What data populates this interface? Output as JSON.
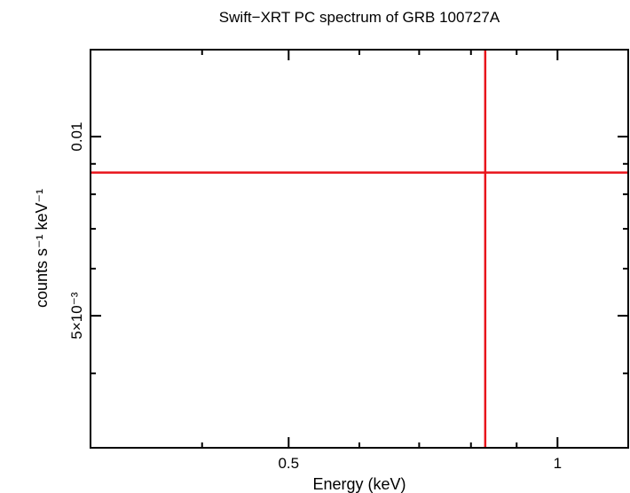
{
  "chart_data": {
    "type": "scatter",
    "title": "Swift−XRT PC spectrum of GRB 100727A",
    "xlabel": "Energy (keV)",
    "ylabel": "counts s⁻¹ keV⁻¹",
    "x_scale": "log",
    "y_scale": "log",
    "xlim": [
      0.3,
      1.2
    ],
    "ylim": [
      0.003,
      0.014
    ],
    "x_tick_labels": [
      {
        "value": 0.5,
        "label": "0.5"
      },
      {
        "value": 1,
        "label": "1"
      }
    ],
    "y_tick_labels": [
      {
        "value": 0.005,
        "label": "5×10⁻³"
      },
      {
        "value": 0.01,
        "label": "0.01"
      }
    ],
    "x_minor_ticks": [
      0.4,
      0.6,
      0.7,
      0.8,
      0.9
    ],
    "y_minor_ticks": [
      0.004,
      0.006,
      0.007,
      0.008,
      0.009
    ],
    "grid": false,
    "series": [
      {
        "color": "#e8141b",
        "points": [
          {
            "x": 0.83,
            "y": 0.0087,
            "xerr": [
              0.3,
              1.2
            ],
            "yerr": [
              0.003,
              0.014
            ]
          }
        ]
      }
    ]
  }
}
